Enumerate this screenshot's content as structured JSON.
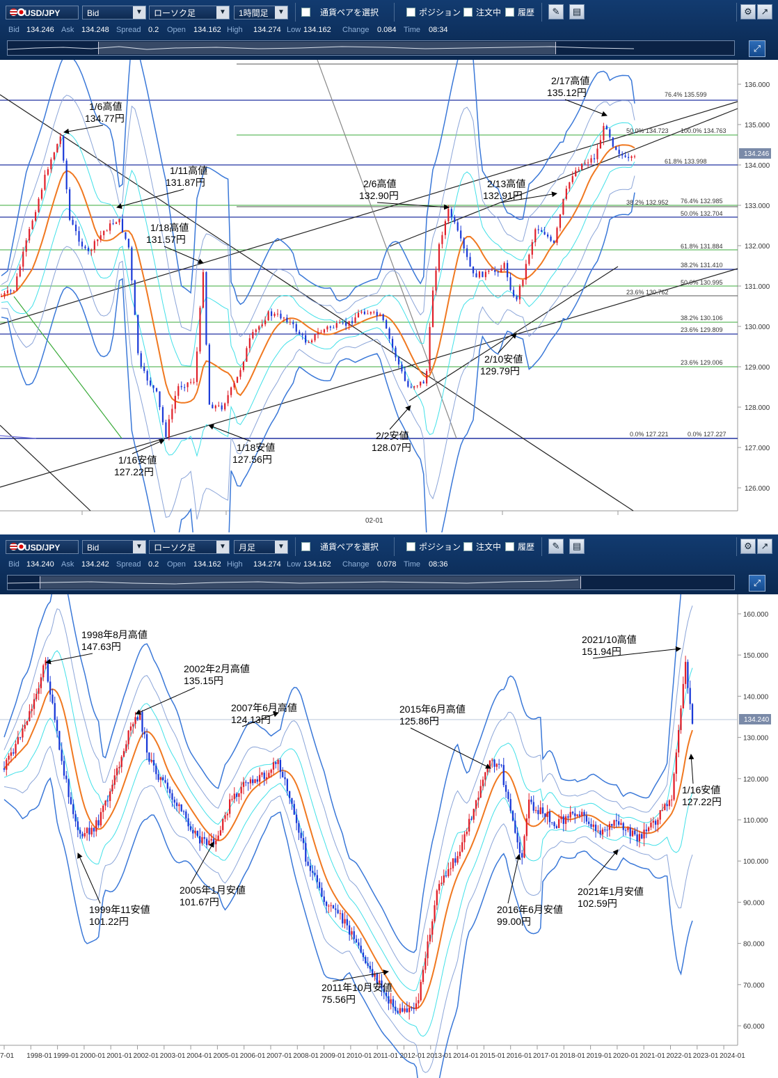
{
  "panel1": {
    "pair": "USD/JPY",
    "price_type": "Bid",
    "chart_type": "ローソク足",
    "timeframe": "1時間足",
    "pair_select_label": "通貨ペアを選択",
    "toggles": [
      "ポジション",
      "注文中",
      "履歴"
    ],
    "quote": {
      "bid_label": "Bid",
      "bid": "134.246",
      "ask_label": "Ask",
      "ask": "134.248",
      "spread_label": "Spread",
      "spread": "0.2",
      "open_label": "Open",
      "open": "134.162",
      "high_label": "High",
      "high": "134.274",
      "low_label": "Low",
      "low": "134.162",
      "change_label": "Change",
      "change": "0.084",
      "time_label": "Time",
      "time": "08:34"
    },
    "y_ticks": [
      "136.000",
      "135.000",
      "134.000",
      "133.000",
      "132.000",
      "131.000",
      "130.000",
      "129.000",
      "128.000",
      "127.000",
      "126.000"
    ],
    "current_price": "134.246",
    "x_tick": "02-01",
    "fib_labels": [
      "76.4%  135.599",
      "50.0%  134.723",
      "100.0%  134.763",
      "61.8%  133.998",
      "38.2%  132.952",
      "76.4%  132.985",
      "50.0%  132.704",
      "61.8%  131.884",
      "38.2%  131.410",
      "50.0%  130.995",
      "23.6%  130.762",
      "38.2%  130.106",
      "23.6%  129.809",
      "23.6%  129.006",
      "0.0%  127.221",
      "0.0%  127.227"
    ],
    "annotations": [
      {
        "label": "1/6高値",
        "price": "134.77円"
      },
      {
        "label": "1/11高値",
        "price": "131.87円"
      },
      {
        "label": "1/18高値",
        "price": "131.57円"
      },
      {
        "label": "1/16安値",
        "price": "127.22円"
      },
      {
        "label": "1/18安値",
        "price": "127.56円"
      },
      {
        "label": "2/6高値",
        "price": "132.90円"
      },
      {
        "label": "2/2安値",
        "price": "128.07円"
      },
      {
        "label": "2/13高値",
        "price": "132.91円"
      },
      {
        "label": "2/17高値",
        "price": "135.12円"
      },
      {
        "label": "2/10安値",
        "price": "129.79円"
      }
    ]
  },
  "panel2": {
    "pair": "USD/JPY",
    "price_type": "Bid",
    "chart_type": "ローソク足",
    "timeframe": "月足",
    "pair_select_label": "通貨ペアを選択",
    "toggles": [
      "ポジション",
      "注文中",
      "履歴"
    ],
    "quote": {
      "bid_label": "Bid",
      "bid": "134.240",
      "ask_label": "Ask",
      "ask": "134.242",
      "spread_label": "Spread",
      "spread": "0.2",
      "open_label": "Open",
      "open": "134.162",
      "high_label": "High",
      "high": "134.274",
      "low_label": "Low",
      "low": "134.162",
      "change_label": "Change",
      "change": "0.078",
      "time_label": "Time",
      "time": "08:36"
    },
    "y_ticks": [
      "160.000",
      "150.000",
      "140.000",
      "130.000",
      "120.000",
      "110.000",
      "100.000",
      "90.000",
      "80.000",
      "70.000",
      "60.000"
    ],
    "current_price": "134.240",
    "x_ticks": [
      "7-01",
      "1998-01",
      "1999-01",
      "2000-01",
      "2001-01",
      "2002-01",
      "2003-01",
      "2004-01",
      "2005-01",
      "2006-01",
      "2007-01",
      "2008-01",
      "2009-01",
      "2010-01",
      "2011-01",
      "2012-01",
      "2013-01",
      "2014-01",
      "2015-01",
      "2016-01",
      "2017-01",
      "2018-01",
      "2019-01",
      "2020-01",
      "2021-01",
      "2022-01",
      "2023-01",
      "2024-01"
    ],
    "annotations": [
      {
        "label": "1998年8月高値",
        "price": "147.63円"
      },
      {
        "label": "2002年2月高値",
        "price": "135.15円"
      },
      {
        "label": "2007年6月高値",
        "price": "124.13円"
      },
      {
        "label": "2015年6月高値",
        "price": "125.86円"
      },
      {
        "label": "2021/10高値",
        "price": "151.94円"
      },
      {
        "label": "1999年11安値",
        "price": "101.22円"
      },
      {
        "label": "2005年1月安値",
        "price": "101.67円"
      },
      {
        "label": "2011年10月安値",
        "price": "75.56円"
      },
      {
        "label": "2016年6月安値",
        "price": "99.00円"
      },
      {
        "label": "2021年1月安値",
        "price": "102.59円"
      },
      {
        "label": "1/16安値",
        "price": "127.22円"
      }
    ]
  },
  "colors": {
    "toolbar": "#0a2850",
    "bull": "#e0202a",
    "bear": "#1a3ad8",
    "ma": "#f07820",
    "bb_inner": "#40e0e8",
    "bb_outer": "#3a78d8",
    "fib_green": "#3aaa3a",
    "fib_blue": "#2030a0"
  }
}
